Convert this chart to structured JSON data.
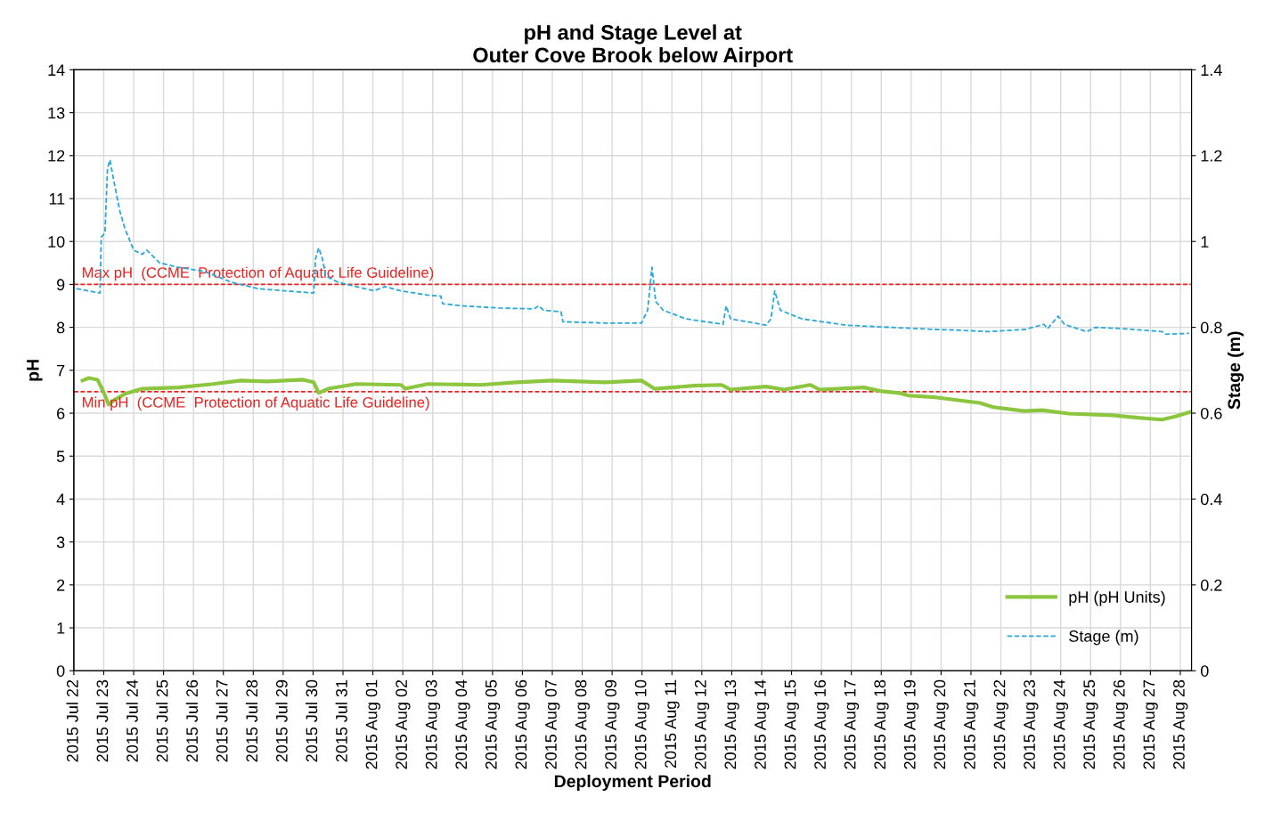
{
  "chart_data": {
    "type": "line",
    "title": "pH and Stage Level at\nOuter Cove Brook below Airport",
    "xlabel": "Deployment Period",
    "ylabel": "pH",
    "y2label": "Stage (m)",
    "xlim": [
      "2015-07-22",
      "2015-08-28T09:00"
    ],
    "xticks": [
      {
        "value": "2015-07-22",
        "label": "2015 Jul 22"
      },
      {
        "value": "2015-07-23",
        "label": "2015 Jul 23"
      },
      {
        "value": "2015-07-24",
        "label": "2015 Jul 24"
      },
      {
        "value": "2015-07-25",
        "label": "2015 Jul 25"
      },
      {
        "value": "2015-07-26",
        "label": "2015 Jul 26"
      },
      {
        "value": "2015-07-27",
        "label": "2015 Jul 27"
      },
      {
        "value": "2015-07-28",
        "label": "2015 Jul 28"
      },
      {
        "value": "2015-07-29",
        "label": "2015 Jul 29"
      },
      {
        "value": "2015-07-30",
        "label": "2015 Jul 30"
      },
      {
        "value": "2015-07-31",
        "label": "2015 Jul 31"
      },
      {
        "value": "2015-08-01",
        "label": "2015 Aug 01"
      },
      {
        "value": "2015-08-02",
        "label": "2015 Aug 02"
      },
      {
        "value": "2015-08-03",
        "label": "2015 Aug 03"
      },
      {
        "value": "2015-08-04",
        "label": "2015 Aug 04"
      },
      {
        "value": "2015-08-05",
        "label": "2015 Aug 05"
      },
      {
        "value": "2015-08-06",
        "label": "2015 Aug 06"
      },
      {
        "value": "2015-08-07",
        "label": "2015 Aug 07"
      },
      {
        "value": "2015-08-08",
        "label": "2015 Aug 08"
      },
      {
        "value": "2015-08-09",
        "label": "2015 Aug 09"
      },
      {
        "value": "2015-08-10",
        "label": "2015 Aug 10"
      },
      {
        "value": "2015-08-11",
        "label": "2015 Aug 11"
      },
      {
        "value": "2015-08-12",
        "label": "2015 Aug 12"
      },
      {
        "value": "2015-08-13",
        "label": "2015 Aug 13"
      },
      {
        "value": "2015-08-14",
        "label": "2015 Aug 14"
      },
      {
        "value": "2015-08-15",
        "label": "2015 Aug 15"
      },
      {
        "value": "2015-08-16",
        "label": "2015 Aug 16"
      },
      {
        "value": "2015-08-17",
        "label": "2015 Aug 17"
      },
      {
        "value": "2015-08-18",
        "label": "2015 Aug 18"
      },
      {
        "value": "2015-08-19",
        "label": "2015 Aug 19"
      },
      {
        "value": "2015-08-20",
        "label": "2015 Aug 20"
      },
      {
        "value": "2015-08-21",
        "label": "2015 Aug 21"
      },
      {
        "value": "2015-08-22",
        "label": "2015 Aug 22"
      },
      {
        "value": "2015-08-23",
        "label": "2015 Aug 23"
      },
      {
        "value": "2015-08-24",
        "label": "2015 Aug 24"
      },
      {
        "value": "2015-08-25",
        "label": "2015 Aug 25"
      },
      {
        "value": "2015-08-26",
        "label": "2015 Aug 26"
      },
      {
        "value": "2015-08-27",
        "label": "2015 Aug 27"
      },
      {
        "value": "2015-08-28",
        "label": "2015 Aug 28"
      }
    ],
    "ylim": [
      0,
      14
    ],
    "yticks": [
      0,
      1,
      2,
      3,
      4,
      5,
      6,
      7,
      8,
      9,
      10,
      11,
      12,
      13,
      14
    ],
    "y2lim": [
      0,
      1.4
    ],
    "y2ticks": [
      0,
      0.2,
      0.4,
      0.6,
      0.8,
      1,
      1.2,
      1.4
    ],
    "grid": true,
    "legend": "bottom right",
    "marker": "none",
    "series": [
      {
        "name": "pH (pH Units)",
        "color": "#8cc63f",
        "line_style": "solid",
        "x": [
          "2015-07-22T07:00",
          "2015-07-22T12:00",
          "2015-07-22T19:00",
          "2015-07-22T23:00",
          "2015-07-23T04:00",
          "2015-07-23T08:00",
          "2015-07-23T17:00",
          "2015-07-24T07:00",
          "2015-07-25T12:00",
          "2015-07-26T16:00",
          "2015-07-27T14:00",
          "2015-07-28T11:00",
          "2015-07-29T16:00",
          "2015-07-30T00:30",
          "2015-07-30T04:30",
          "2015-07-30T12:00",
          "2015-07-31T10:30",
          "2015-08-01T22:30",
          "2015-08-02T02:00",
          "2015-08-02T20:00",
          "2015-08-04T14:30",
          "2015-08-05T19:00",
          "2015-08-07T00:00",
          "2015-08-08T18:30",
          "2015-08-09T23:30",
          "2015-08-10T10:00",
          "2015-08-11T18:00",
          "2015-08-12T16:00",
          "2015-08-12T23:00",
          "2015-08-14T03:30",
          "2015-08-14T18:00",
          "2015-08-15T15:00",
          "2015-08-15T22:30",
          "2015-08-17T10:00",
          "2015-08-18T00:30",
          "2015-08-18T14:30",
          "2015-08-18T22:00",
          "2015-08-19T19:30",
          "2015-08-21T07:00",
          "2015-08-21T18:00",
          "2015-08-22T19:00",
          "2015-08-23T09:00",
          "2015-08-24T06:30",
          "2015-08-25T18:00",
          "2015-08-26T16:00",
          "2015-08-27T09:30",
          "2015-08-27T20:30",
          "2015-08-28T08:00"
        ],
        "values": [
          6.76,
          6.82,
          6.78,
          6.55,
          6.2,
          6.3,
          6.45,
          6.57,
          6.6,
          6.68,
          6.76,
          6.74,
          6.78,
          6.72,
          6.47,
          6.57,
          6.68,
          6.66,
          6.57,
          6.68,
          6.66,
          6.72,
          6.76,
          6.72,
          6.76,
          6.57,
          6.64,
          6.66,
          6.55,
          6.62,
          6.55,
          6.66,
          6.55,
          6.6,
          6.51,
          6.47,
          6.41,
          6.37,
          6.24,
          6.14,
          6.05,
          6.07,
          5.99,
          5.95,
          5.89,
          5.85,
          5.93,
          6.03
        ]
      },
      {
        "name": "Stage (m)",
        "color": "#29a8dc",
        "line_style": "dashed",
        "axis": "y2",
        "x": [
          "2015-07-22T02:00",
          "2015-07-22T21:00",
          "2015-07-22T22:00",
          "2015-07-23T01:00",
          "2015-07-23T03:00",
          "2015-07-23T05:00",
          "2015-07-23T07:30",
          "2015-07-23T13:00",
          "2015-07-23T17:00",
          "2015-07-24T00:00",
          "2015-07-24T07:00",
          "2015-07-24T10:30",
          "2015-07-24T21:00",
          "2015-07-25T12:00",
          "2015-07-26T09:00",
          "2015-07-27T06:30",
          "2015-07-28T04:00",
          "2015-07-29T01:30",
          "2015-07-30T00:30",
          "2015-07-30T02:00",
          "2015-07-30T04:30",
          "2015-07-30T07:30",
          "2015-07-30T10:00",
          "2015-07-30T20:00",
          "2015-07-31T10:30",
          "2015-08-01T01:00",
          "2015-08-01T09:30",
          "2015-08-01T22:30",
          "2015-08-02T20:00",
          "2015-08-03T06:30",
          "2015-08-03T08:00",
          "2015-08-04T00:30",
          "2015-08-05T05:00",
          "2015-08-06T09:30",
          "2015-08-06T13:00",
          "2015-08-06T17:00",
          "2015-08-07T07:00",
          "2015-08-07T08:30",
          "2015-08-08T18:30",
          "2015-08-09T23:30",
          "2015-08-10T04:30",
          "2015-08-10T08:00",
          "2015-08-10T11:00",
          "2015-08-10T17:00",
          "2015-08-11T11:00",
          "2015-08-12T17:00",
          "2015-08-12T19:30",
          "2015-08-12T23:00",
          "2015-08-14T03:30",
          "2015-08-14T07:30",
          "2015-08-14T10:30",
          "2015-08-14T15:00",
          "2015-08-15T08:00",
          "2015-08-16T20:00",
          "2015-08-18T07:30",
          "2015-08-19T19:30",
          "2015-08-20T17:00",
          "2015-08-21T14:00",
          "2015-08-22T19:00",
          "2015-08-23T10:30",
          "2015-08-23T13:30",
          "2015-08-23T22:00",
          "2015-08-24T03:00",
          "2015-08-24T21:00",
          "2015-08-25T04:00",
          "2015-08-26T01:30",
          "2015-08-27T09:30",
          "2015-08-27T12:00",
          "2015-08-28T07:00"
        ],
        "values": [
          0.89,
          0.88,
          1.01,
          1.02,
          1.17,
          1.19,
          1.15,
          1.07,
          1.03,
          0.98,
          0.97,
          0.98,
          0.95,
          0.94,
          0.93,
          0.905,
          0.89,
          0.885,
          0.88,
          0.96,
          0.985,
          0.96,
          0.92,
          0.905,
          0.895,
          0.885,
          0.895,
          0.885,
          0.875,
          0.873,
          0.855,
          0.85,
          0.845,
          0.843,
          0.85,
          0.84,
          0.836,
          0.813,
          0.81,
          0.81,
          0.84,
          0.94,
          0.86,
          0.84,
          0.82,
          0.807,
          0.85,
          0.82,
          0.805,
          0.82,
          0.885,
          0.84,
          0.82,
          0.805,
          0.8,
          0.795,
          0.793,
          0.79,
          0.795,
          0.807,
          0.797,
          0.826,
          0.807,
          0.79,
          0.8,
          0.797,
          0.79,
          0.784,
          0.786
        ]
      }
    ],
    "ref_lines": [
      {
        "axis": "y",
        "value": 9,
        "label": "Max pH  (CCME  Protection of Aquatic Life Guideline)",
        "color": "#e8221f",
        "line_style": "dashed"
      },
      {
        "axis": "y",
        "value": 6.5,
        "label": "Min pH  (CCME  Protection of Aquatic Life Guideline)",
        "color": "#e8221f",
        "line_style": "dashed"
      }
    ]
  }
}
